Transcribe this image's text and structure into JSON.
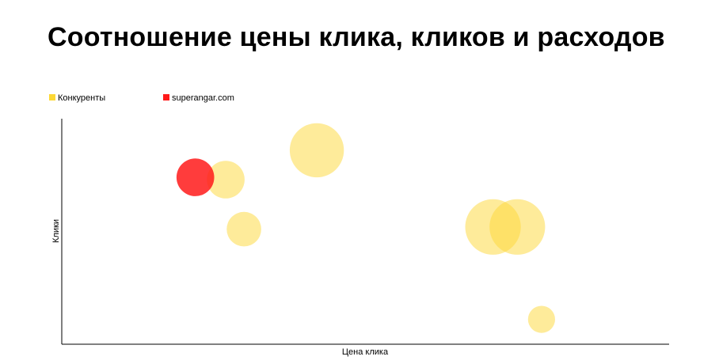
{
  "chart_data": {
    "type": "scatter",
    "title": "Соотношение цены клика, кликов и расходов",
    "xlabel": "Цена клика",
    "ylabel": "Клики",
    "xlim": [
      0,
      100
    ],
    "ylim": [
      0,
      100
    ],
    "grid": false,
    "legend_position": "top-left",
    "series": [
      {
        "name": "Конкуренты",
        "color": "#fdd835",
        "points": [
          {
            "x": 27,
            "y": 73,
            "size": 25
          },
          {
            "x": 42,
            "y": 86,
            "size": 36
          },
          {
            "x": 30,
            "y": 51,
            "size": 23
          },
          {
            "x": 71,
            "y": 52,
            "size": 37
          },
          {
            "x": 75,
            "y": 52,
            "size": 37
          },
          {
            "x": 79,
            "y": 11,
            "size": 18
          }
        ]
      },
      {
        "name": "superangar.com",
        "color": "#ff1a1a",
        "points": [
          {
            "x": 22,
            "y": 74,
            "size": 25
          }
        ]
      }
    ]
  }
}
